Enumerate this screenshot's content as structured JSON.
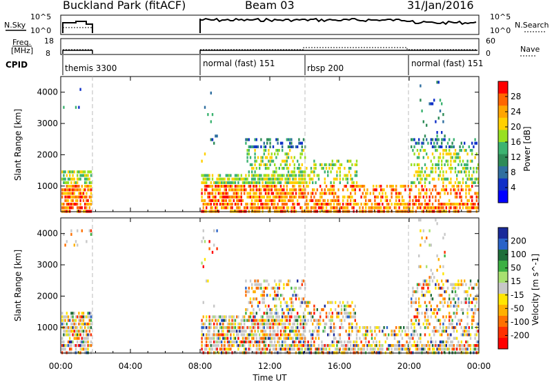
{
  "header": {
    "station": "Buckland Park (fitACF)",
    "beam": "Beam 03",
    "date": "31/Jan/2016"
  },
  "params": {
    "nsky_label": "N.Sky",
    "nsky_ticks": [
      "10^5",
      "10^0"
    ],
    "nsearch_label": "N.Search",
    "nsearch_ticks": [
      "10^5",
      "10^0"
    ],
    "freq_label_line1": "Freq.",
    "freq_label_line2": "[MHz]",
    "freq_ticks": [
      "18",
      "8"
    ],
    "nave_label": "Nave",
    "nave_ticks": [
      "60",
      "0"
    ],
    "cpid_label": "CPID"
  },
  "cpid_segments": [
    {
      "label": "themis 3300",
      "start_h": 0.0
    },
    {
      "label": "normal (fast) 151",
      "start_h": 8.0
    },
    {
      "label": "rbsp 200",
      "start_h": 14.0
    },
    {
      "label": "normal (fast) 151",
      "start_h": 20.0
    }
  ],
  "chart_data": [
    {
      "type": "heatmap",
      "panel": "power",
      "ylabel": "Slant Range [km]",
      "yticks": [
        "1000",
        "2000",
        "3000",
        "4000"
      ],
      "ylim": [
        180,
        4500
      ],
      "xlim": [
        0,
        24
      ],
      "colorbar_label": "Power [dB]",
      "colorbar_ticks": [
        "28",
        "24",
        "20",
        "16",
        "12",
        "8",
        "4"
      ],
      "colors": [
        "#ff0000",
        "#ff6600",
        "#ffa500",
        "#ffd000",
        "#98e020",
        "#3cb371",
        "#2e8b57",
        "#2f6fa0",
        "#1030c8",
        "#0000ff"
      ],
      "data_gaps_h": [
        [
          1.75,
          8.0
        ]
      ]
    },
    {
      "type": "heatmap",
      "panel": "velocity",
      "ylabel": "Slant Range [km]",
      "yticks": [
        "1000",
        "2000",
        "3000",
        "4000"
      ],
      "ylim": [
        180,
        4500
      ],
      "xlim": [
        0,
        24
      ],
      "colorbar_label": "Velocity [m s^-1]",
      "colorbar_ticks": [
        "200",
        "100",
        "50",
        "15",
        "-15",
        "-50",
        "-100",
        "-200"
      ],
      "colors": [
        "#1a2a9a",
        "#2a63c8",
        "#1e6e3a",
        "#3cb043",
        "#a8e070",
        "#c8c8c8",
        "#ffe600",
        "#ffb000",
        "#ff7000",
        "#ff3000",
        "#ff0000"
      ],
      "data_gaps_h": [
        [
          1.75,
          8.0
        ]
      ]
    }
  ],
  "xaxis": {
    "ticks": [
      "00:00",
      "04:00",
      "08:00",
      "12:00",
      "16:00",
      "20:00",
      "00:00"
    ],
    "label": "Time UT"
  }
}
